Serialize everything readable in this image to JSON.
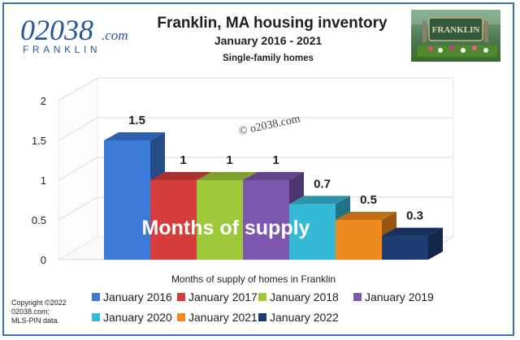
{
  "logo": {
    "number": "02038",
    "suffix": ".com",
    "town": "FRANKLIN"
  },
  "sign": {
    "text": "FRANKLIN"
  },
  "copyright": [
    "Copyright ©2022",
    "02038.com;",
    "MLS-PIN data."
  ],
  "watermark": "© o2038.com",
  "overlay_text": "Months of supply",
  "colors": {
    "frame": "#3b6fb6",
    "logo_blue": "#26579c",
    "series": [
      "#3b7ad8",
      "#d63c3c",
      "#9cc83a",
      "#7d56b0",
      "#35b9d6",
      "#f08a1e",
      "#1f3b74"
    ]
  },
  "chart_data": {
    "type": "bar",
    "title": "Franklin, MA housing inventory",
    "subtitle": "January  2016 - 2021",
    "subtitle2": "Single-family homes",
    "xlabel": "Months of supply of homes in Franklin",
    "ylabel": "",
    "ylim": [
      0,
      2
    ],
    "yticks": [
      "0",
      "0.5",
      "1",
      "1.5",
      "2"
    ],
    "grid": true,
    "legend_position": "bottom",
    "categories": [
      "January 2016",
      "January 2017",
      "January 2018",
      "January 2019",
      "January 2020",
      "January 2021",
      "January 2022"
    ],
    "values": [
      1.5,
      1,
      1,
      1,
      0.7,
      0.5,
      0.3
    ],
    "data_labels": [
      "1.5",
      "1",
      "1",
      "1",
      "0.7",
      "0.5",
      "0.3"
    ]
  }
}
